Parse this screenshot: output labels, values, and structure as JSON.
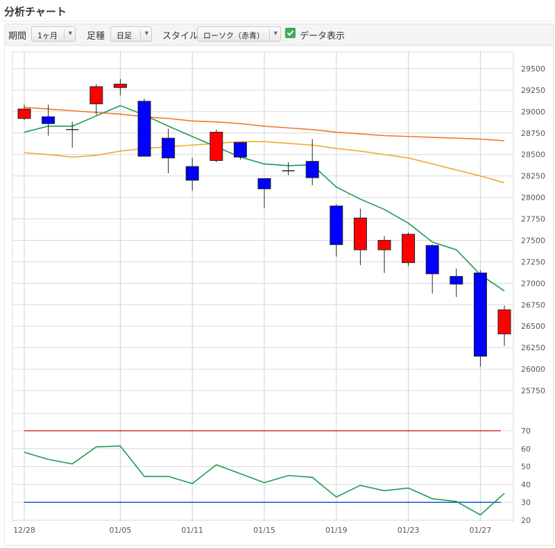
{
  "page_title": "分析チャート",
  "toolbar": {
    "period_label": "期間",
    "period_value": "1ヶ月",
    "bar_label": "足種",
    "bar_value": "日足",
    "style_label": "スタイル",
    "style_value": "ローソク（赤青）",
    "data_display_label": "データ表示",
    "data_display_checked": true
  },
  "colors": {
    "up": "#ff0000",
    "down": "#0000ff",
    "ma_short": "#1a9a50",
    "ma_mid": "#f07828",
    "ma_long": "#f0a828",
    "osc_line": "#1a9a50",
    "osc_upper": "#e03020",
    "osc_lower": "#2060d0"
  },
  "chart_data": [
    {
      "type": "candlestick",
      "x_ticks": [
        "12/28",
        "01/05",
        "01/11",
        "01/15",
        "01/19",
        "01/23",
        "01/27"
      ],
      "x_tick_index": [
        0,
        4,
        7,
        10,
        13,
        16,
        19
      ],
      "y_ticks": [
        29500,
        29250,
        29000,
        28750,
        28500,
        28250,
        28000,
        27750,
        27500,
        27250,
        27000,
        26750,
        26500,
        26250,
        26000,
        25750
      ],
      "ylim": [
        25600,
        29750
      ],
      "grid": true,
      "candles": [
        {
          "o": 28920,
          "h": 29080,
          "l": 28900,
          "c": 29030
        },
        {
          "o": 28940,
          "h": 29080,
          "l": 28720,
          "c": 28860
        },
        {
          "o": 28790,
          "h": 28880,
          "l": 28580,
          "c": 28790
        },
        {
          "o": 29090,
          "h": 29320,
          "l": 28960,
          "c": 29290
        },
        {
          "o": 29280,
          "h": 29380,
          "l": 29190,
          "c": 29320
        },
        {
          "o": 29120,
          "h": 29150,
          "l": 28480,
          "c": 28480
        },
        {
          "o": 28690,
          "h": 28800,
          "l": 28280,
          "c": 28460
        },
        {
          "o": 28360,
          "h": 28460,
          "l": 28080,
          "c": 28200
        },
        {
          "o": 28430,
          "h": 28790,
          "l": 28410,
          "c": 28760
        },
        {
          "o": 28640,
          "h": 28640,
          "l": 28440,
          "c": 28470
        },
        {
          "o": 28220,
          "h": 28220,
          "l": 27880,
          "c": 28100
        },
        {
          "o": 28310,
          "h": 28410,
          "l": 28260,
          "c": 28310
        },
        {
          "o": 28420,
          "h": 28680,
          "l": 28140,
          "c": 28230
        },
        {
          "o": 27900,
          "h": 27920,
          "l": 27310,
          "c": 27450
        },
        {
          "o": 27390,
          "h": 27870,
          "l": 27210,
          "c": 27760
        },
        {
          "o": 27390,
          "h": 27550,
          "l": 27120,
          "c": 27500
        },
        {
          "o": 27240,
          "h": 27590,
          "l": 27200,
          "c": 27570
        },
        {
          "o": 27440,
          "h": 27450,
          "l": 26880,
          "c": 27110
        },
        {
          "o": 27080,
          "h": 27170,
          "l": 26840,
          "c": 26990
        },
        {
          "o": 27120,
          "h": 27150,
          "l": 26030,
          "c": 26150
        },
        {
          "o": 26410,
          "h": 26740,
          "l": 26270,
          "c": 26690
        }
      ],
      "series": [
        {
          "values": [
            28760,
            28830,
            28830,
            28950,
            29070,
            28960,
            28830,
            28710,
            28590,
            28470,
            28390,
            28370,
            28380,
            28120,
            27980,
            27860,
            27700,
            27480,
            27390,
            27100,
            26910
          ]
        },
        {
          "values": [
            29050,
            29030,
            29010,
            28990,
            28970,
            28940,
            28920,
            28890,
            28880,
            28860,
            28830,
            28810,
            28790,
            28760,
            28740,
            28720,
            28710,
            28700,
            28690,
            28680,
            28660
          ]
        },
        {
          "values": [
            28520,
            28500,
            28470,
            28490,
            28540,
            28570,
            28590,
            28610,
            28630,
            28650,
            28650,
            28630,
            28610,
            28570,
            28540,
            28500,
            28460,
            28390,
            28320,
            28250,
            28170
          ]
        }
      ]
    },
    {
      "type": "line",
      "y_ticks": [
        70,
        60,
        50,
        40,
        30,
        20
      ],
      "ylim": [
        18,
        72
      ],
      "upper_line": 70,
      "lower_line": 30,
      "series": [
        {
          "values": [
            58,
            54,
            51.5,
            61,
            61.5,
            44.5,
            44.5,
            40.5,
            51,
            46,
            41,
            45,
            44,
            33,
            39.5,
            36.5,
            38,
            32,
            30.5,
            23,
            35
          ]
        }
      ]
    }
  ]
}
